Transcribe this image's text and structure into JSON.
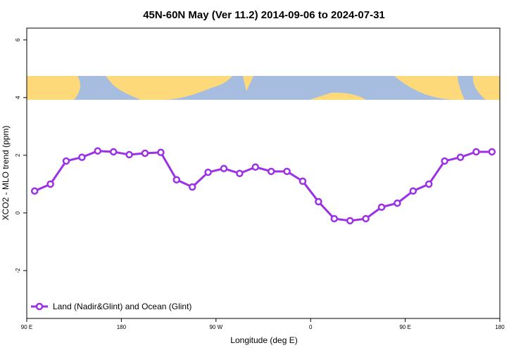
{
  "chart_data": {
    "type": "line",
    "title": "45N-60N May (Ver 11.2)   2014-09-06 to 2024-07-31",
    "x_label": "Longitude (deg E)",
    "y_label": "XCO2 - MLO trend (ppm)",
    "x": [
      97.5,
      112.5,
      127.5,
      142.5,
      157.5,
      172.5,
      187.5,
      202.5,
      217.5,
      232.5,
      247.5,
      262.5,
      277.5,
      292.5,
      307.5,
      322.5,
      337.5,
      352.5,
      367.5,
      382.5,
      397.5,
      412.5,
      427.5,
      442.5,
      457.5,
      472.5,
      487.5,
      502.5,
      517.5,
      532.5
    ],
    "series": [
      {
        "name": "Land (Nadir&Glint) and Ocean (Glint)",
        "color": "#9b30e6",
        "values": [
          0.76,
          1.0,
          1.8,
          1.93,
          2.15,
          2.12,
          2.02,
          2.07,
          2.1,
          1.15,
          0.9,
          1.41,
          1.54,
          1.37,
          1.59,
          1.44,
          1.44,
          1.1,
          0.39,
          -0.2,
          -0.27,
          -0.2,
          0.2,
          0.34,
          0.76,
          1.0,
          1.8,
          1.93,
          2.12,
          2.12
        ]
      }
    ],
    "xlim": [
      90,
      540
    ],
    "xticks": [
      {
        "value": 90,
        "label": "90 E"
      },
      {
        "value": 180,
        "label": "180"
      },
      {
        "value": 270,
        "label": "90 W"
      },
      {
        "value": 360,
        "label": "0"
      },
      {
        "value": 450,
        "label": "90 E"
      },
      {
        "value": 540,
        "label": "180"
      }
    ],
    "ylim": [
      -3.66,
      6.41
    ],
    "yticks": [
      -2,
      0,
      2,
      4,
      6
    ],
    "legend": "bottom-left"
  }
}
